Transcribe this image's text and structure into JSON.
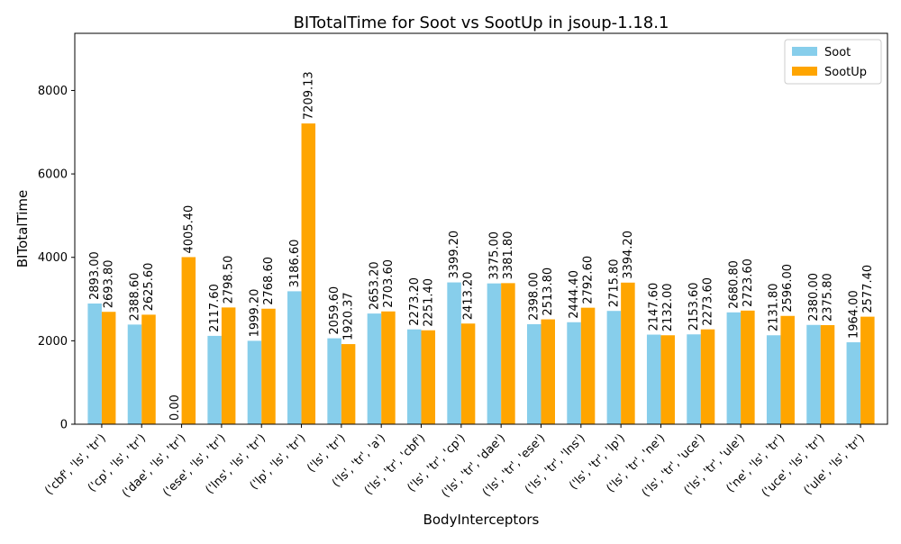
{
  "chart_data": {
    "type": "bar",
    "title": "BITotalTime for Soot vs SootUp in jsoup-1.18.1",
    "xlabel": "BodyInterceptors",
    "ylabel": "BITotalTime",
    "ylim": [
      0,
      9370
    ],
    "yticks": [
      0,
      2000,
      4000,
      6000,
      8000
    ],
    "grid": false,
    "legend_position": "top-right",
    "categories": [
      "('cbf', 'ls', 'tr')",
      "('cp', 'ls', 'tr')",
      "('dae', 'ls', 'tr')",
      "('ese', 'ls', 'tr')",
      "('lns', 'ls', 'tr')",
      "('lp', 'ls', 'tr')",
      "('ls', 'tr')",
      "('ls', 'tr', 'a')",
      "('ls', 'tr', 'cbf')",
      "('ls', 'tr', 'cp')",
      "('ls', 'tr', 'dae')",
      "('ls', 'tr', 'ese')",
      "('ls', 'tr', 'lns')",
      "('ls', 'tr', 'lp')",
      "('ls', 'tr', 'ne')",
      "('ls', 'tr', 'uce')",
      "('ls', 'tr', 'ule')",
      "('ne', 'ls', 'tr')",
      "('uce', 'ls', 'tr')",
      "('ule', 'ls', 'tr')"
    ],
    "series": [
      {
        "name": "Soot",
        "color": "#87ceeb",
        "values": [
          2893.0,
          2388.6,
          0.0,
          2117.6,
          1999.2,
          3186.6,
          2059.6,
          2653.2,
          2273.2,
          3399.2,
          3375.0,
          2398.0,
          2444.4,
          2715.8,
          2147.6,
          2153.6,
          2680.8,
          2131.8,
          2380.0,
          1964.0
        ],
        "labels": [
          "2893.00",
          "2388.60",
          "0.00",
          "2117.60",
          "1999.20",
          "3186.60",
          "2059.60",
          "2653.20",
          "2273.20",
          "3399.20",
          "3375.00",
          "2398.00",
          "2444.40",
          "2715.80",
          "2147.60",
          "2153.60",
          "2680.80",
          "2131.80",
          "2380.00",
          "1964.00"
        ]
      },
      {
        "name": "SootUp",
        "color": "#ffa500",
        "values": [
          2693.8,
          2625.6,
          4005.4,
          2798.5,
          2768.6,
          7209.13,
          1920.37,
          2703.6,
          2251.4,
          2413.2,
          3381.8,
          2513.8,
          2792.6,
          3394.2,
          2132.0,
          2273.6,
          2723.6,
          2596.0,
          2375.8,
          2577.4
        ],
        "labels": [
          "2693.80",
          "2625.60",
          "4005.40",
          "2798.50",
          "2768.60",
          "7209.13",
          "1920.37",
          "2703.60",
          "2251.40",
          "2413.20",
          "3381.80",
          "2513.80",
          "2792.60",
          "3394.20",
          "2132.00",
          "2273.60",
          "2723.60",
          "2596.00",
          "2375.80",
          "2577.40"
        ]
      }
    ]
  }
}
